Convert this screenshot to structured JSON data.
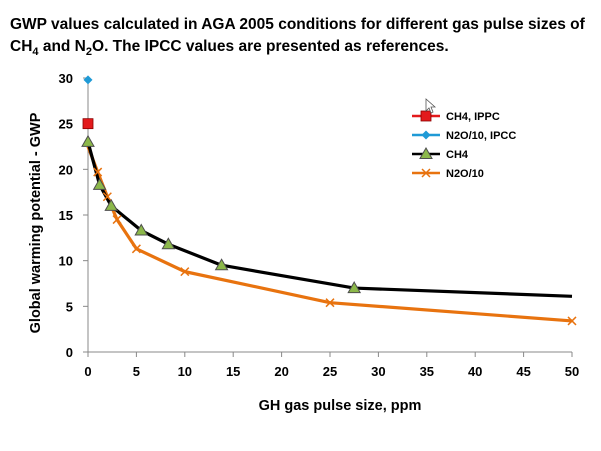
{
  "title": {
    "line1": "GWP values calculated in AGA 2005 conditions for different gas pulse sizes of",
    "l2_a": "CH",
    "l2_sub1": "4",
    "l2_b": " and  N",
    "l2_sub2": "2",
    "l2_c": "O. The IPCC values are presented as references."
  },
  "chart_data": {
    "type": "line",
    "xlabel": "GH gas pulse size, ppm",
    "ylabel": "Global warming potential - GWP",
    "xlim": [
      0,
      50
    ],
    "ylim": [
      0,
      30
    ],
    "xticks": [
      0,
      5,
      10,
      15,
      20,
      25,
      30,
      35,
      40,
      45,
      50
    ],
    "yticks": [
      0,
      5,
      10,
      15,
      20,
      25,
      30
    ],
    "grid": false,
    "legend_position": "top-right",
    "series": [
      {
        "name": "CH4, IPPC",
        "marker": "square",
        "color": "#e31a1c",
        "line": false,
        "x": [
          0
        ],
        "y": [
          25
        ]
      },
      {
        "name": "N2O/10, IPCC",
        "marker": "diamond",
        "color": "#1f9ad6",
        "line": false,
        "x": [
          0
        ],
        "y": [
          29.8
        ]
      },
      {
        "name": "CH4",
        "marker": "triangle",
        "color": "#000000",
        "marker_fill": "#8cb84a",
        "line": true,
        "x": [
          0,
          1.2,
          2.4,
          5.5,
          8.3,
          13.8,
          27.5,
          50
        ],
        "y": [
          23,
          18.3,
          16,
          13.3,
          11.8,
          9.5,
          7,
          6.1
        ]
      },
      {
        "name": "N2O/10",
        "marker": "x",
        "color": "#e8730f",
        "line": true,
        "x": [
          0,
          1,
          2,
          3,
          5,
          10,
          25,
          50
        ],
        "y": [
          22.5,
          19.7,
          17,
          14.5,
          11.3,
          8.8,
          5.4,
          3.4
        ]
      }
    ]
  }
}
